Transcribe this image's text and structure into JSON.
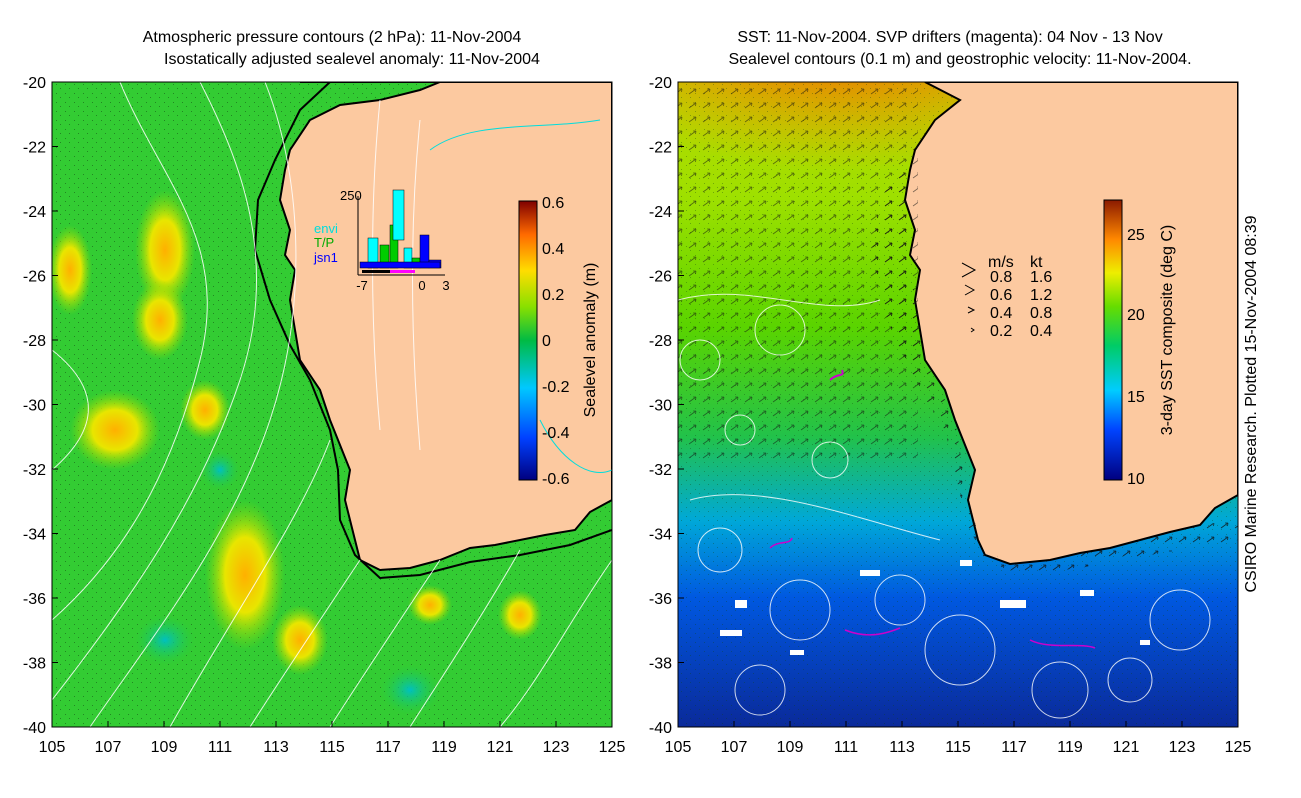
{
  "left_panel": {
    "title_line1": "Atmospheric pressure contours (2 hPa): 11-Nov-2004",
    "title_line2": "Isostatically adjusted sealevel anomaly: 11-Nov-2004",
    "colorbar_label": "Sealevel anomaly (m)",
    "colorbar_ticks": [
      "0.6",
      "0.4",
      "0.2",
      "0",
      "-0.2",
      "-0.4",
      "-0.6"
    ],
    "inset": {
      "ytick": "250",
      "xticks": [
        "-7",
        "0",
        "3"
      ],
      "legend": [
        {
          "label": "envi",
          "color": "#00ffff"
        },
        {
          "label": "T/P",
          "color": "#00cc00"
        },
        {
          "label": "jsn1",
          "color": "#0000ff"
        }
      ]
    }
  },
  "right_panel": {
    "title_line1": "SST: 11-Nov-2004. SVP drifters (magenta): 04 Nov - 13 Nov",
    "title_line2": "Sealevel contours (0.1 m) and geostrophic velocity: 11-Nov-2004.",
    "colorbar_label": "3-day SST composite (deg C)",
    "colorbar_ticks": [
      "25",
      "20",
      "15",
      "10"
    ],
    "velocity_legend": {
      "header_ms": "m/s",
      "header_kt": "kt",
      "rows": [
        {
          "ms": "0.8",
          "kt": "1.6"
        },
        {
          "ms": "0.6",
          "kt": "1.2"
        },
        {
          "ms": "0.4",
          "kt": "0.8"
        },
        {
          "ms": "0.2",
          "kt": "0.4"
        }
      ]
    }
  },
  "axes": {
    "lat_ticks": [
      "-20",
      "-22",
      "-24",
      "-26",
      "-28",
      "-30",
      "-32",
      "-34",
      "-36",
      "-38",
      "-40"
    ],
    "lon_ticks": [
      "105",
      "107",
      "109",
      "111",
      "113",
      "115",
      "117",
      "119",
      "121",
      "123",
      "125"
    ]
  },
  "credit": "CSIRO Marine Research. Plotted 15-Nov-2004 08:39"
}
